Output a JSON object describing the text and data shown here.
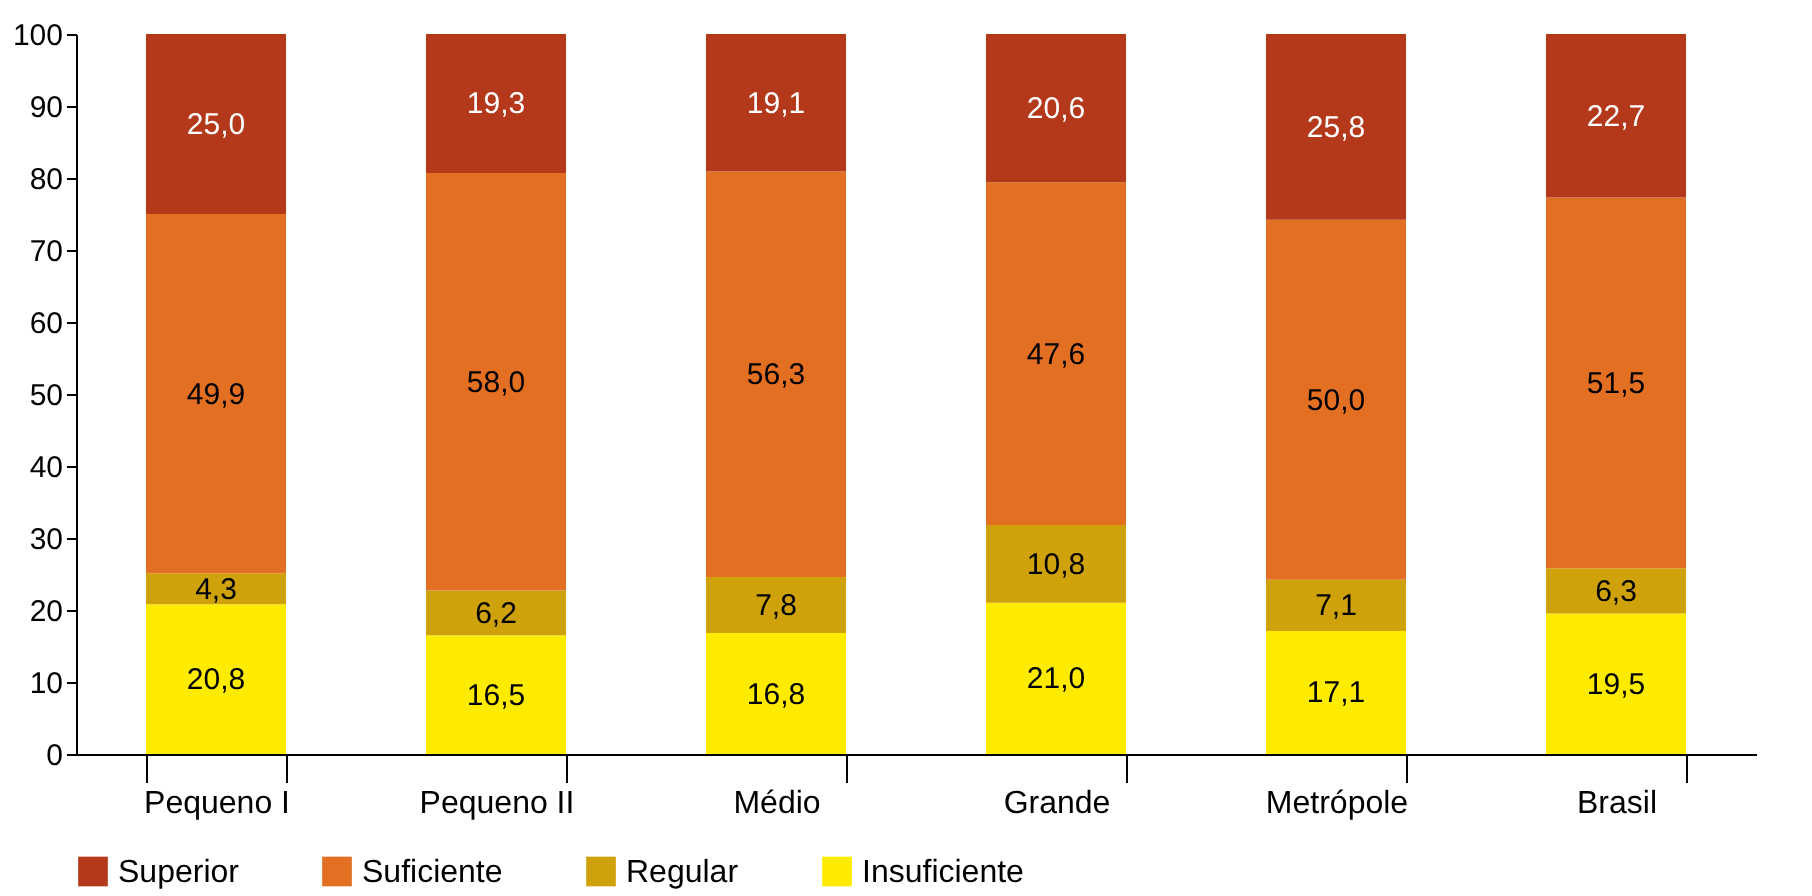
{
  "chart_data": {
    "type": "bar",
    "stacked": true,
    "categories": [
      "Pequeno I",
      "Pequeno II",
      "Médio",
      "Grande",
      "Metrópole",
      "Brasil"
    ],
    "series": [
      {
        "name": "Insuficiente",
        "color": "#ffeb00",
        "values": [
          20.8,
          16.5,
          16.8,
          21.0,
          17.1,
          19.5
        ],
        "value_labels": [
          "20,8",
          "16,5",
          "16,8",
          "21,0",
          "17,1",
          "19,5"
        ]
      },
      {
        "name": "Regular",
        "color": "#cfa20c",
        "values": [
          4.3,
          6.2,
          7.8,
          10.8,
          7.1,
          6.3
        ],
        "value_labels": [
          "4,3",
          "6,2",
          "7,8",
          "10,8",
          "7,1",
          "6,3"
        ]
      },
      {
        "name": "Suficiente",
        "color": "#e26f22",
        "values": [
          49.9,
          58.0,
          56.3,
          47.6,
          50.0,
          51.5
        ],
        "value_labels": [
          "49,9",
          "58,0",
          "56,3",
          "47,6",
          "50,0",
          "51,5"
        ]
      },
      {
        "name": "Superior",
        "color": "#b4381a",
        "values": [
          25.0,
          19.3,
          19.1,
          20.6,
          25.8,
          22.7
        ],
        "value_labels": [
          "25,0",
          "19,3",
          "19,1",
          "20,6",
          "25,8",
          "22,7"
        ]
      }
    ],
    "ylim": [
      0,
      100
    ],
    "yticks": [
      0,
      10,
      20,
      30,
      40,
      50,
      60,
      70,
      80,
      90,
      100
    ],
    "grid": false,
    "legend": "bottom"
  }
}
